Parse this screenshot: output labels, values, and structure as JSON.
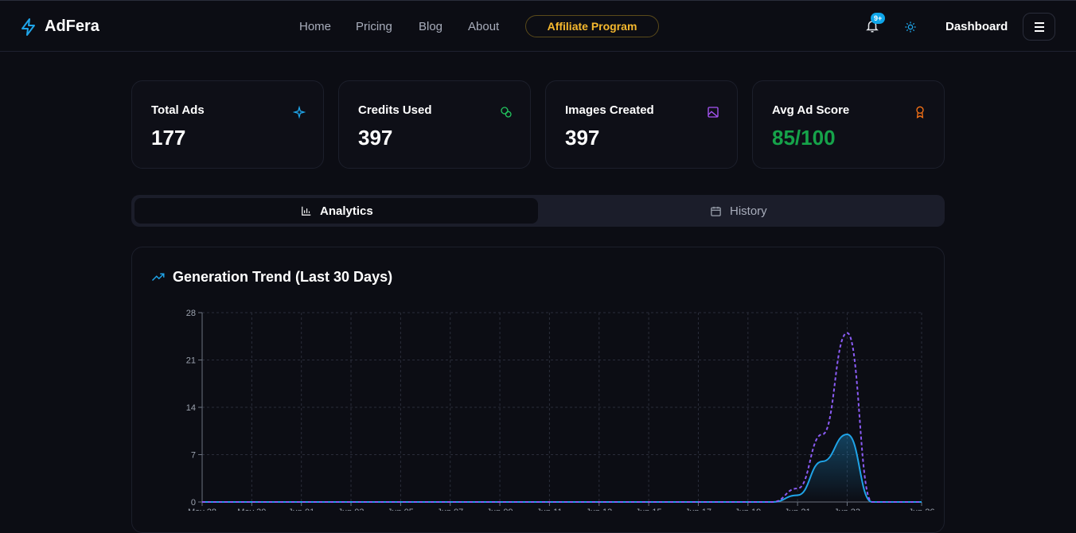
{
  "header": {
    "brand": "AdFera",
    "nav": [
      "Home",
      "Pricing",
      "Blog",
      "About"
    ],
    "affiliate": "Affiliate Program",
    "badge": "9+",
    "dashboard": "Dashboard"
  },
  "stats": [
    {
      "label": "Total Ads",
      "value": 177
    },
    {
      "label": "Credits Used",
      "value": 397
    },
    {
      "label": "Images Created",
      "value": 397
    },
    {
      "label": "Avg Ad Score",
      "value": "85/100"
    }
  ],
  "tabs": [
    "Analytics",
    "History"
  ],
  "chart_data": {
    "type": "line",
    "title": "Generation Trend (Last 30 Days)",
    "categories": [
      "May 28",
      null,
      "May 30",
      null,
      "Jun 01",
      null,
      "Jun 03",
      null,
      "Jun 05",
      null,
      "Jun 07",
      null,
      "Jun 09",
      null,
      "Jun 11",
      null,
      "Jun 13",
      null,
      "Jun 15",
      null,
      "Jun 17",
      null,
      "Jun 19",
      null,
      "Jun 21",
      null,
      "Jun 23",
      null,
      null,
      "Jun 26"
    ],
    "series": [
      {
        "color": "#1fa4e8",
        "dash": false,
        "area": true,
        "values": [
          0,
          0,
          0,
          0,
          0,
          0,
          0,
          0,
          0,
          0,
          0,
          0,
          0,
          0,
          0,
          0,
          0,
          0,
          0,
          0,
          0,
          0,
          0,
          0,
          1,
          6,
          10,
          0,
          0,
          0
        ]
      },
      {
        "color": "#8b5cf6",
        "dash": true,
        "area": false,
        "values": [
          0,
          0,
          0,
          0,
          0,
          0,
          0,
          0,
          0,
          0,
          0,
          0,
          0,
          0,
          0,
          0,
          0,
          0,
          0,
          0,
          0,
          0,
          0,
          0,
          2,
          10,
          25,
          0,
          0,
          0
        ]
      }
    ],
    "ylim": [
      0,
      28
    ],
    "yticks": [
      0,
      7,
      14,
      21,
      28
    ],
    "grid": true
  }
}
